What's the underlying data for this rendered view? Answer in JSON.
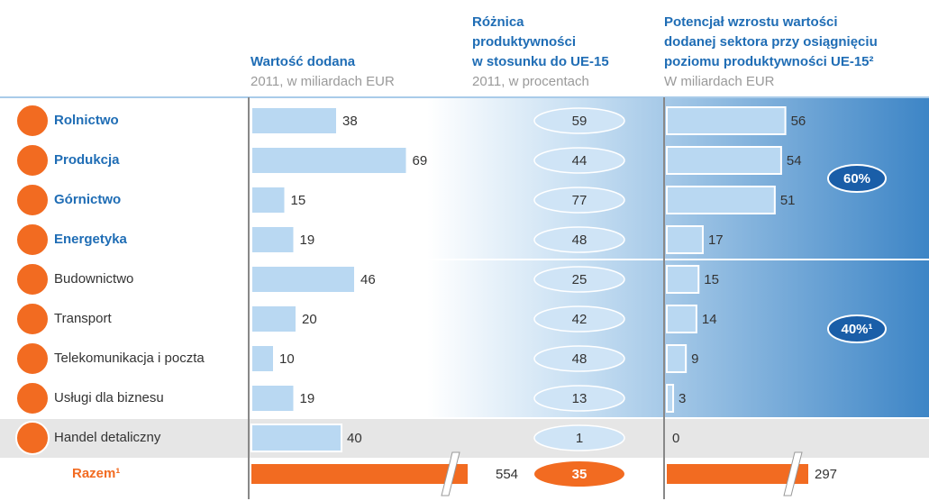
{
  "chart_data": {
    "type": "bar-table",
    "categories": [
      "Rolnictwo",
      "Produkcja",
      "Górnictwo",
      "Energetyka",
      "Budownictwo",
      "Transport",
      "Telekomunikacja i poczta",
      "Usługi dla biznesu",
      "Handel detaliczny"
    ],
    "highlighted": [
      true,
      true,
      true,
      true,
      false,
      false,
      false,
      false,
      false
    ],
    "columns": [
      {
        "title_lines": [
          "Wartość dodana"
        ],
        "subtitle": "2011, w miliardach EUR",
        "values": [
          38,
          69,
          15,
          19,
          46,
          20,
          10,
          19,
          40
        ],
        "total": 554,
        "color": "#b9d8f2"
      },
      {
        "title_lines": [
          "Różnica",
          "produktywności",
          "w stosunku do UE-15"
        ],
        "subtitle": "2011, w procentach",
        "values": [
          59,
          44,
          77,
          48,
          25,
          42,
          48,
          13,
          1
        ],
        "total": 35,
        "color": "#cfe4f6"
      },
      {
        "title_lines": [
          "Potencjał wzrostu wartości",
          "dodanej sektora przy osiągnięciu",
          "poziomu produktywności UE-15²"
        ],
        "subtitle": "W miliardach EUR",
        "values": [
          56,
          54,
          51,
          17,
          15,
          14,
          9,
          3,
          0
        ],
        "total": 297,
        "color": "#b9d8f2"
      }
    ],
    "total_label": "Razem¹",
    "total_color": "#f26b21",
    "group_labels": [
      "60%",
      "40%¹"
    ]
  }
}
